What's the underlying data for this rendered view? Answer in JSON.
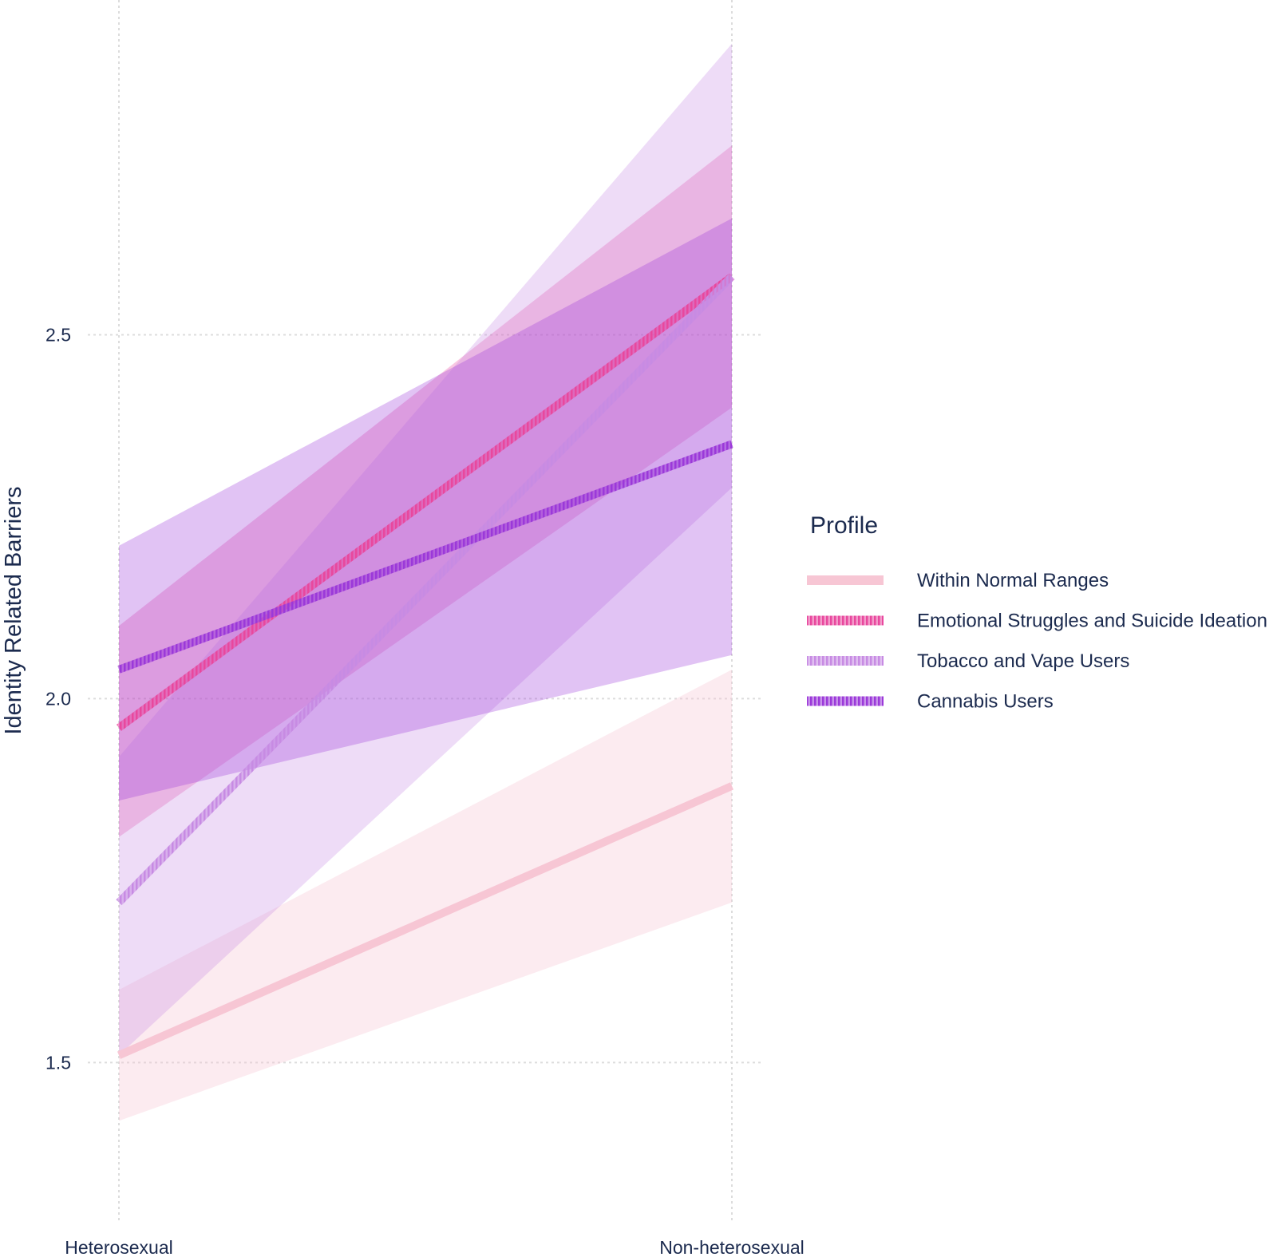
{
  "chart_data": {
    "type": "line",
    "title": "",
    "xlabel": "",
    "ylabel": "Identity Related Barriers",
    "categories": [
      "Heterosexual",
      "Non-heterosexual"
    ],
    "ylim": [
      1.28,
      2.96
    ],
    "yticks": [
      1.5,
      2.0,
      2.5
    ],
    "grid": true,
    "legend": {
      "title": "Profile",
      "position": "right"
    },
    "series": [
      {
        "name": "Within Normal Ranges",
        "values": [
          1.51,
          1.88
        ],
        "lower": [
          1.42,
          1.72
        ],
        "upper": [
          1.6,
          2.04
        ],
        "color": "#f7c6d4",
        "pattern": "solid"
      },
      {
        "name": "Emotional Struggles and Suicide Ideation",
        "values": [
          1.96,
          2.58
        ],
        "lower": [
          1.81,
          2.4
        ],
        "upper": [
          2.1,
          2.76
        ],
        "color": "#e8489e",
        "pattern": "hatched"
      },
      {
        "name": "Tobacco and Vape Users",
        "values": [
          1.72,
          2.58
        ],
        "lower": [
          1.51,
          2.29
        ],
        "upper": [
          1.92,
          2.9
        ],
        "color": "#c78be3",
        "pattern": "hatched"
      },
      {
        "name": "Cannabis Users",
        "values": [
          2.04,
          2.35
        ],
        "lower": [
          1.86,
          2.06
        ],
        "upper": [
          2.21,
          2.66
        ],
        "color": "#9b39d9",
        "pattern": "hatched"
      }
    ]
  }
}
